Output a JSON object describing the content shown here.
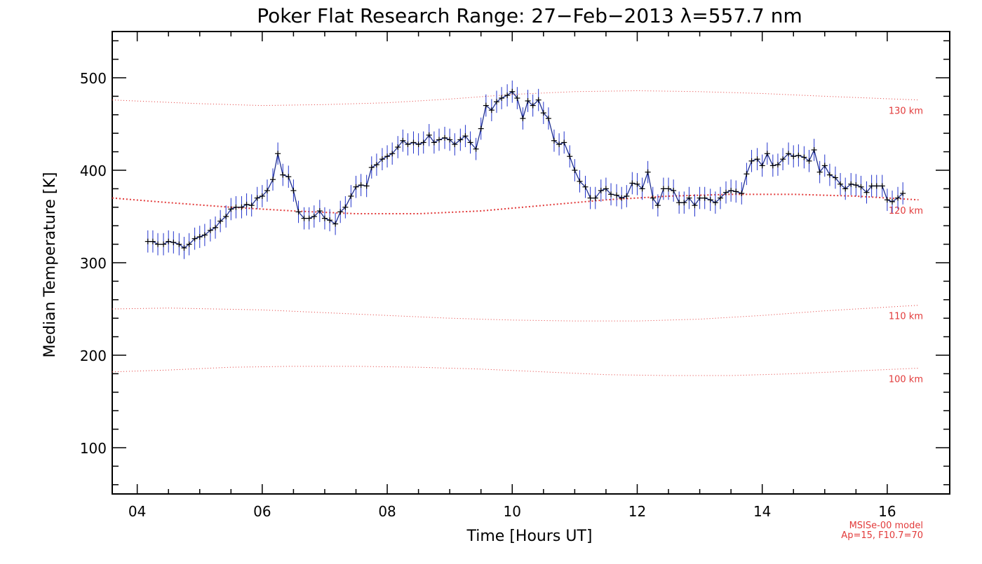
{
  "chart_data": {
    "type": "line",
    "title": "Poker Flat Research Range: 27−Feb−2013 λ=557.7 nm",
    "xlabel": "Time [Hours UT]",
    "ylabel": "Median Temperature [K]",
    "xlim": [
      3.6,
      17.0
    ],
    "ylim": [
      50,
      550
    ],
    "x_ticks": [
      "04",
      "06",
      "08",
      "10",
      "12",
      "14",
      "16"
    ],
    "x_tick_values": [
      4,
      6,
      8,
      10,
      12,
      14,
      16
    ],
    "y_ticks": [
      "100",
      "200",
      "300",
      "400",
      "500"
    ],
    "y_tick_values": [
      100,
      200,
      300,
      400,
      500
    ],
    "grid": false,
    "colors": {
      "data_line": "#1f2f8f",
      "error_bar": "#2233cc",
      "marker": "#000000",
      "model": "#e23a3a"
    },
    "series": [
      {
        "x": [
          4.17,
          4.25,
          4.33,
          4.42,
          4.5,
          4.58,
          4.67,
          4.75,
          4.83,
          4.92,
          5.0,
          5.08,
          5.17,
          5.25,
          5.33,
          5.42,
          5.5,
          5.58,
          5.67,
          5.75,
          5.83,
          5.92,
          6.0,
          6.08,
          6.17,
          6.25,
          6.33,
          6.42,
          6.5,
          6.58,
          6.67,
          6.75,
          6.83,
          6.92,
          7.0,
          7.08,
          7.17,
          7.25,
          7.33,
          7.42,
          7.5,
          7.58,
          7.67,
          7.75,
          7.83,
          7.92,
          8.0,
          8.08,
          8.17,
          8.25,
          8.33,
          8.42,
          8.5,
          8.58,
          8.67,
          8.75,
          8.83,
          8.92,
          9.0,
          9.08,
          9.17,
          9.25,
          9.33,
          9.42,
          9.5,
          9.58,
          9.67,
          9.75,
          9.83,
          9.92,
          10.0,
          10.08,
          10.17,
          10.25,
          10.33,
          10.42,
          10.5,
          10.58,
          10.67,
          10.75,
          10.83,
          10.92,
          11.0,
          11.08,
          11.17,
          11.25,
          11.33,
          11.42,
          11.5,
          11.58,
          11.67,
          11.75,
          11.83,
          11.92,
          12.0,
          12.08,
          12.17,
          12.25,
          12.33,
          12.42,
          12.5,
          12.58,
          12.67,
          12.75,
          12.83,
          12.92,
          13.0,
          13.08,
          13.17,
          13.25,
          13.33,
          13.42,
          13.5,
          13.58,
          13.67,
          13.75,
          13.83,
          13.92,
          14.0,
          14.08,
          14.17,
          14.25,
          14.33,
          14.42,
          14.5,
          14.58,
          14.67,
          14.75,
          14.83,
          14.92,
          15.0,
          15.08,
          15.17,
          15.25,
          15.33,
          15.42,
          15.5,
          15.58,
          15.67,
          15.75,
          15.83,
          15.92,
          16.0,
          16.08,
          16.17,
          16.25
        ],
        "y": [
          323,
          323,
          320,
          320,
          323,
          322,
          320,
          316,
          320,
          326,
          328,
          330,
          335,
          338,
          345,
          350,
          358,
          360,
          360,
          363,
          362,
          370,
          372,
          378,
          390,
          418,
          395,
          393,
          378,
          355,
          348,
          348,
          350,
          356,
          348,
          346,
          342,
          355,
          360,
          372,
          382,
          384,
          383,
          403,
          406,
          412,
          415,
          418,
          425,
          432,
          428,
          430,
          428,
          430,
          438,
          430,
          433,
          435,
          433,
          428,
          433,
          437,
          430,
          423,
          445,
          470,
          465,
          474,
          478,
          481,
          485,
          478,
          456,
          475,
          470,
          476,
          462,
          456,
          432,
          428,
          430,
          415,
          400,
          388,
          382,
          370,
          370,
          378,
          380,
          374,
          373,
          370,
          372,
          386,
          385,
          380,
          398,
          370,
          362,
          380,
          380,
          378,
          365,
          365,
          370,
          362,
          370,
          370,
          368,
          365,
          370,
          376,
          378,
          377,
          375,
          396,
          410,
          412,
          405,
          418,
          405,
          406,
          412,
          418,
          415,
          416,
          414,
          410,
          422,
          398,
          405,
          395,
          392,
          385,
          380,
          385,
          384,
          382,
          376,
          383,
          383,
          383,
          368,
          366,
          370,
          375
        ],
        "error": 12
      }
    ],
    "model_curves": [
      {
        "label": "130 km",
        "x": [
          3.6,
          5,
          6,
          7,
          8,
          9,
          10,
          11,
          12,
          13,
          14,
          15,
          16.5
        ],
        "y": [
          476,
          472,
          470,
          471,
          473,
          477,
          482,
          485,
          486,
          485,
          483,
          480,
          476
        ]
      },
      {
        "label": "120 km",
        "x": [
          3.6,
          4.5,
          5.5,
          6.5,
          7.5,
          8.5,
          9.5,
          10.5,
          11.5,
          12.5,
          13.5,
          14.5,
          15.5,
          16.5
        ],
        "y": [
          370,
          365,
          360,
          356,
          353,
          353,
          356,
          362,
          368,
          372,
          374,
          374,
          372,
          368
        ]
      },
      {
        "label": "110 km",
        "x": [
          3.6,
          4.5,
          6,
          7,
          8,
          9,
          10,
          11,
          12,
          13,
          14,
          15,
          16.5
        ],
        "y": [
          250,
          251,
          249,
          246,
          243,
          240,
          238,
          237,
          237,
          239,
          243,
          248,
          254
        ]
      },
      {
        "label": "100 km",
        "x": [
          3.6,
          4.5,
          5.5,
          6.5,
          7.5,
          8.5,
          9.5,
          10.5,
          11.5,
          12.5,
          13.5,
          14.5,
          15.5,
          16.5
        ],
        "y": [
          182,
          184,
          187,
          188,
          188,
          187,
          185,
          182,
          179,
          178,
          178,
          180,
          183,
          186
        ]
      }
    ],
    "credit_lines": [
      "MSISe-00 model",
      "Ap=15, F10.7=70"
    ]
  }
}
